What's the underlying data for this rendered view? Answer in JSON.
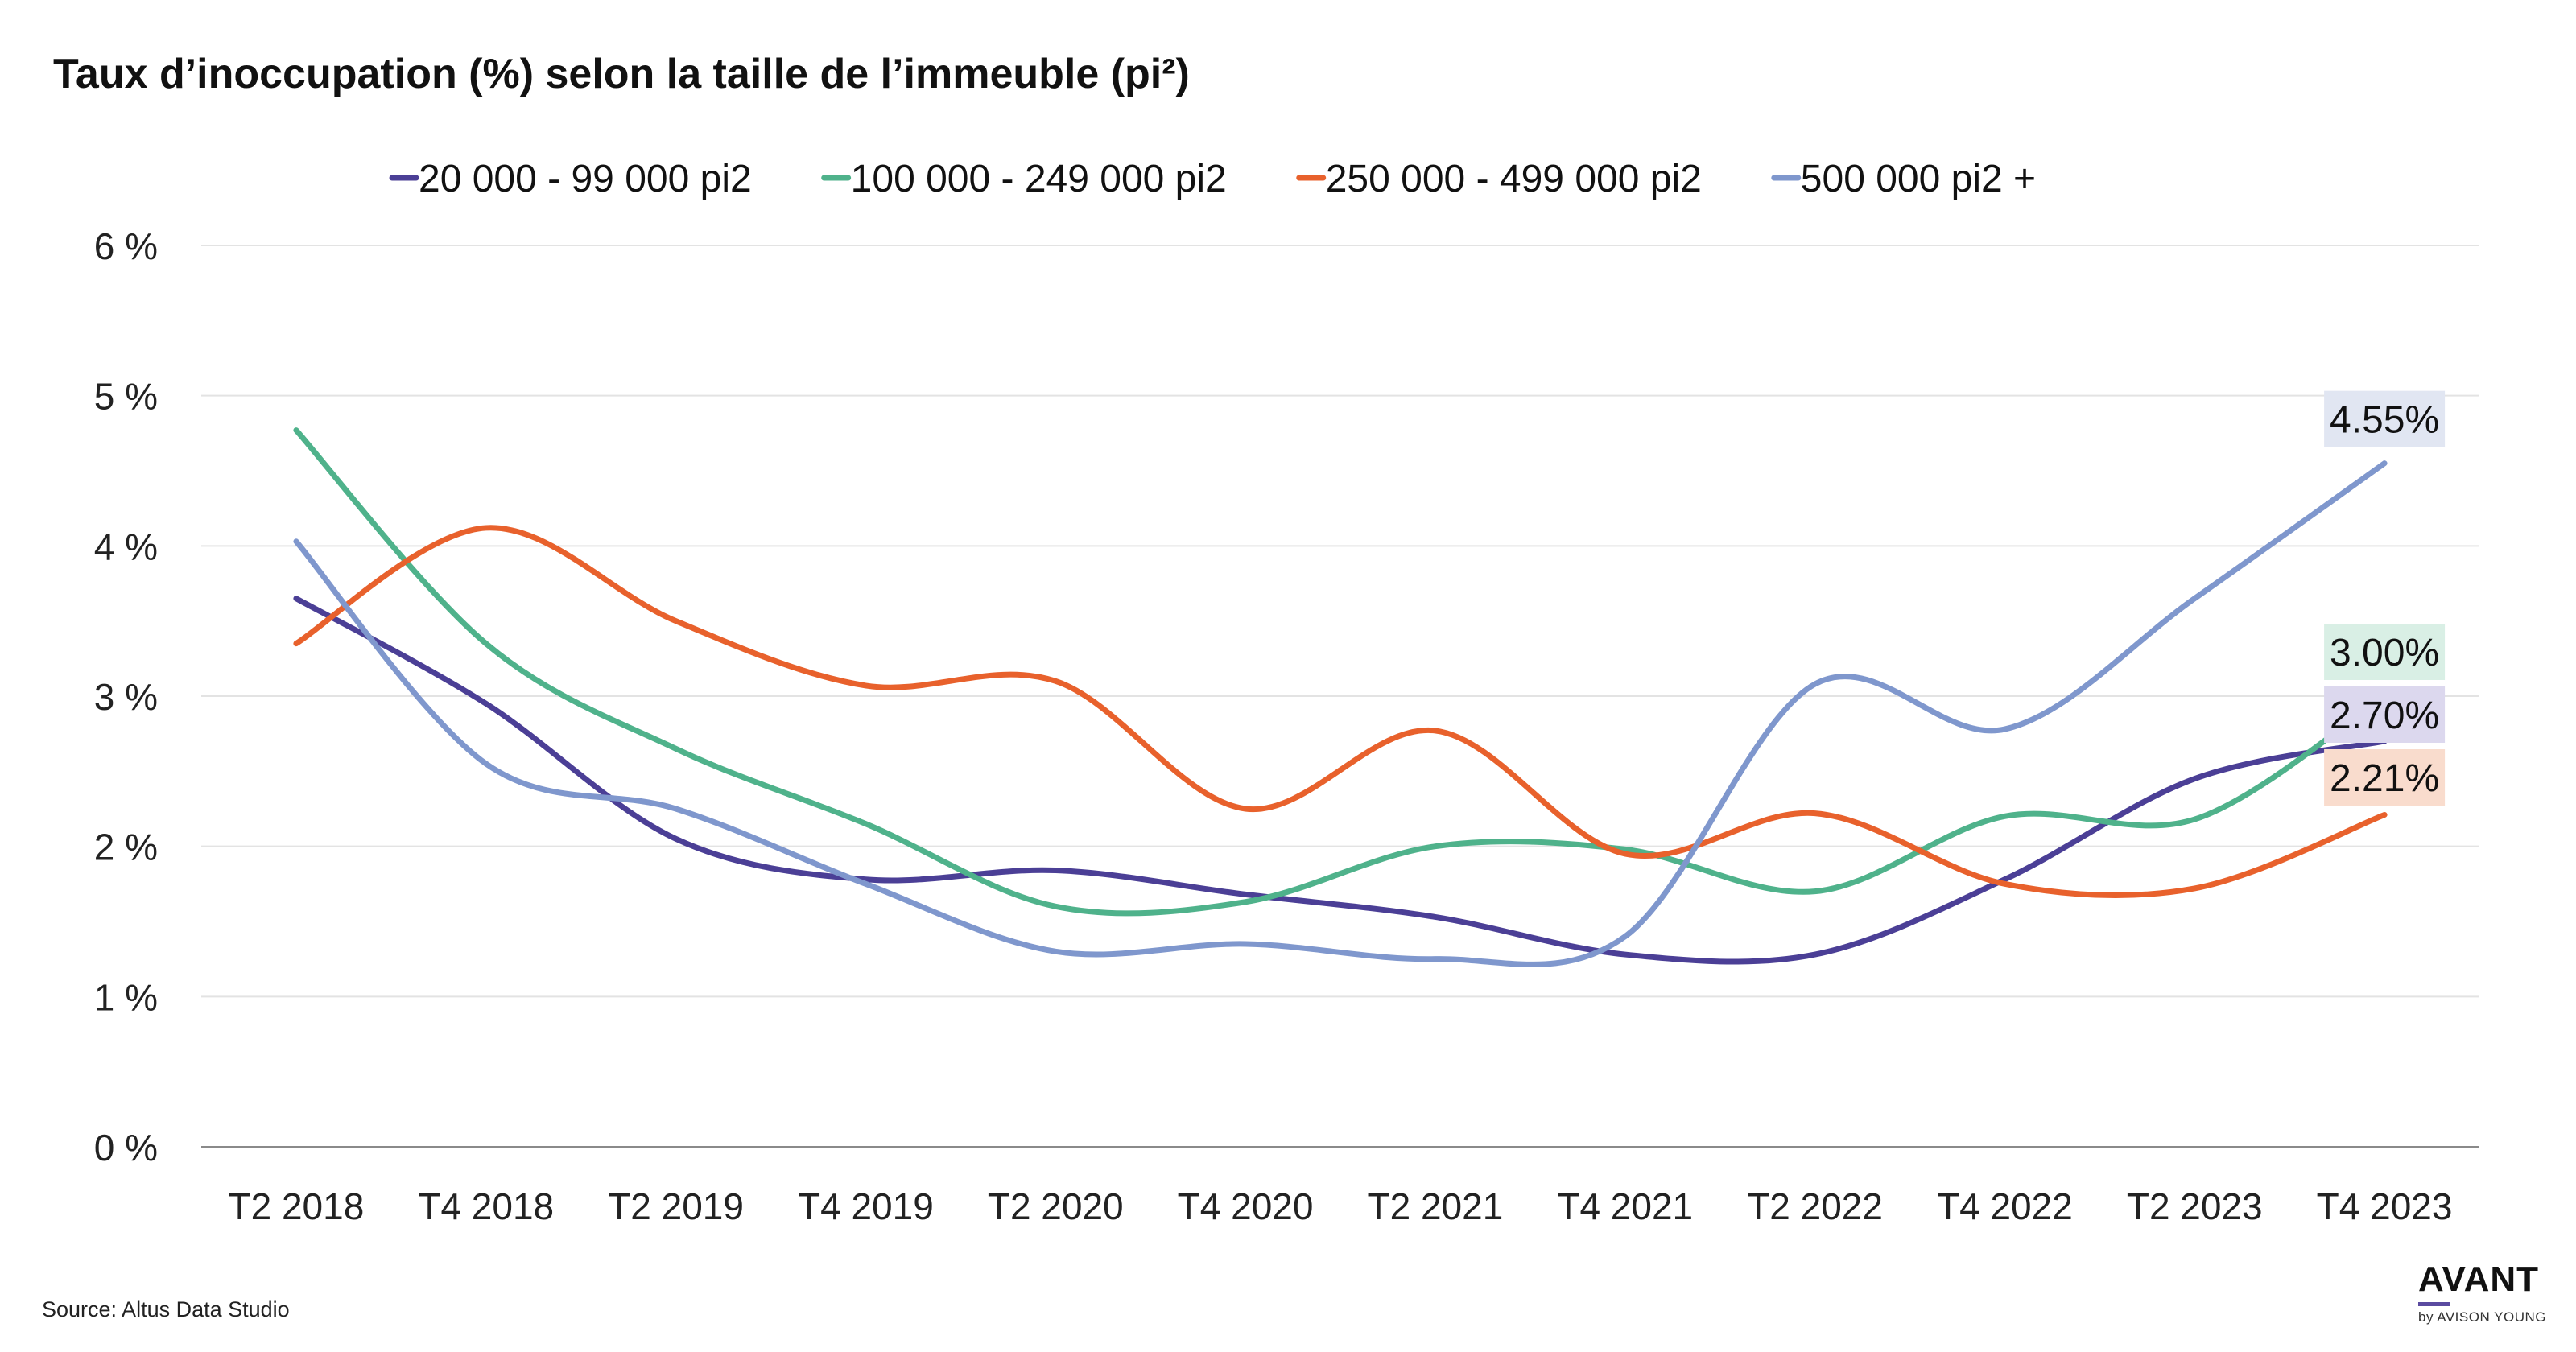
{
  "title": "Taux d’inoccupation (%) selon la taille de l’immeuble (pi²)",
  "source": "Source: Altus Data Studio",
  "brand": {
    "name": "AVANT",
    "sub": "by AVISON YOUNG"
  },
  "chart_data": {
    "type": "line",
    "title": "Taux d’inoccupation (%) selon la taille de l’immeuble (pi²)",
    "xlabel": "",
    "ylabel": "",
    "ylim": [
      0,
      6
    ],
    "y_ticks": [
      0,
      1,
      2,
      3,
      4,
      5,
      6
    ],
    "y_tick_labels": [
      "0 %",
      "1 %",
      "2 %",
      "3 %",
      "4 %",
      "5 %",
      "6 %"
    ],
    "grid": true,
    "legend_position": "top",
    "categories": [
      "T2 2018",
      "T4 2018",
      "T2 2019",
      "T4 2019",
      "T2 2020",
      "T4 2020",
      "T2 2021",
      "T4 2021",
      "T2 2022",
      "T4 2022",
      "T2 2023",
      "T4 2023"
    ],
    "series": [
      {
        "name": "20 000 - 99 000 pi2",
        "color": "#4b3f96",
        "values": [
          3.65,
          2.95,
          2.05,
          1.78,
          1.84,
          1.68,
          1.53,
          1.28,
          1.28,
          1.78,
          2.45,
          2.7
        ],
        "end_label": "2.70%",
        "end_label_bg": "#dcd8ee"
      },
      {
        "name": "100 000 - 249 000 pi2",
        "color": "#4fb28b",
        "values": [
          4.77,
          3.35,
          2.65,
          2.15,
          1.6,
          1.63,
          2.0,
          1.98,
          1.7,
          2.2,
          2.18,
          3.0
        ],
        "end_label": "3.00%",
        "end_label_bg": "#d9efe5"
      },
      {
        "name": "250 000 - 499 000 pi2",
        "color": "#e8612c",
        "values": [
          3.35,
          4.12,
          3.5,
          3.07,
          3.1,
          2.25,
          2.77,
          1.95,
          2.22,
          1.75,
          1.72,
          2.21
        ],
        "end_label": "2.21%",
        "end_label_bg": "#f9dccd"
      },
      {
        "name": "500 000 pi2 +",
        "color": "#7f97cd",
        "values": [
          4.03,
          2.55,
          2.25,
          1.75,
          1.3,
          1.35,
          1.25,
          1.4,
          3.08,
          2.78,
          3.65,
          4.55
        ],
        "end_label": "4.55%",
        "end_label_bg": "#e1e6f2"
      }
    ]
  }
}
